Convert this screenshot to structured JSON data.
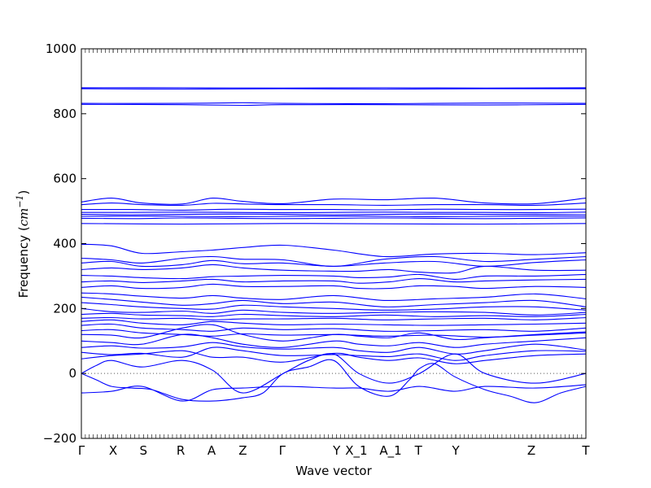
{
  "chart_data": {
    "type": "line",
    "title": "",
    "xlabel": "Wave vector",
    "ylabel": "Frequency",
    "ylabel_unit_base": "cm",
    "ylabel_unit_exp": "−1",
    "ylim": [
      -200,
      1000
    ],
    "yticks": [
      -200,
      0,
      200,
      400,
      600,
      800,
      1000
    ],
    "grid": false,
    "zero_line": {
      "y": 0,
      "style": "dotted",
      "color": "#555555"
    },
    "line_color": "#0000ff",
    "xlim": [
      0,
      100
    ],
    "high_symmetry_points": [
      {
        "label": "Γ",
        "x": 0
      },
      {
        "label": "X",
        "x": 6.3
      },
      {
        "label": "S",
        "x": 12.3
      },
      {
        "label": "R",
        "x": 19.7
      },
      {
        "label": "A",
        "x": 25.8
      },
      {
        "label": "Z",
        "x": 32.0
      },
      {
        "label": "Γ",
        "x": 39.8
      },
      {
        "label": "Y",
        "x": 50.6
      },
      {
        "label": "X_1",
        "x": 54.5
      },
      {
        "label": "A_1",
        "x": 61.3
      },
      {
        "label": "T",
        "x": 66.8
      },
      {
        "label": "Y",
        "x": 74.2
      },
      {
        "label": "Z",
        "x": 89.2
      },
      {
        "label": "T",
        "x": 100
      }
    ],
    "series": [
      {
        "x": [
          0,
          20,
          40,
          60,
          80,
          100
        ],
        "y": [
          880,
          880,
          879,
          880,
          879,
          880
        ]
      },
      {
        "x": [
          0,
          20,
          40,
          60,
          80,
          100
        ],
        "y": [
          877,
          876,
          877,
          876,
          877,
          877
        ]
      },
      {
        "x": [
          0,
          20,
          32,
          40,
          60,
          80,
          100
        ],
        "y": [
          832,
          832,
          834,
          832,
          831,
          833,
          832
        ]
      },
      {
        "x": [
          0,
          20,
          32,
          40,
          60,
          80,
          100
        ],
        "y": [
          829,
          828,
          826,
          828,
          828,
          827,
          829
        ]
      },
      {
        "x": [
          0,
          6,
          12,
          20,
          26,
          32,
          40,
          50,
          60,
          70,
          80,
          90,
          100
        ],
        "y": [
          528,
          540,
          525,
          522,
          540,
          530,
          523,
          537,
          535,
          540,
          525,
          523,
          540
        ]
      },
      {
        "x": [
          0,
          6,
          12,
          20,
          26,
          32,
          40,
          50,
          60,
          70,
          80,
          90,
          100
        ],
        "y": [
          520,
          525,
          520,
          518,
          524,
          522,
          520,
          520,
          518,
          520,
          520,
          518,
          525
        ]
      },
      {
        "x": [
          0,
          10,
          20,
          30,
          40,
          50,
          60,
          70,
          80,
          90,
          100
        ],
        "y": [
          505,
          505,
          503,
          506,
          505,
          505,
          504,
          506,
          505,
          505,
          506
        ]
      },
      {
        "x": [
          0,
          10,
          20,
          30,
          40,
          50,
          60,
          70,
          80,
          90,
          100
        ],
        "y": [
          496,
          496,
          497,
          496,
          495,
          496,
          497,
          496,
          496,
          495,
          497
        ]
      },
      {
        "x": [
          0,
          10,
          20,
          30,
          40,
          50,
          60,
          70,
          80,
          90,
          100
        ],
        "y": [
          490,
          489,
          490,
          491,
          490,
          489,
          490,
          491,
          490,
          490,
          489
        ]
      },
      {
        "x": [
          0,
          10,
          20,
          30,
          40,
          50,
          60,
          70,
          80,
          90,
          100
        ],
        "y": [
          484,
          485,
          484,
          483,
          484,
          485,
          484,
          483,
          484,
          485,
          484
        ]
      },
      {
        "x": [
          0,
          10,
          20,
          30,
          40,
          50,
          60,
          70,
          80,
          90,
          100
        ],
        "y": [
          478,
          477,
          479,
          478,
          477,
          478,
          479,
          478,
          477,
          478,
          479
        ]
      },
      {
        "x": [
          0,
          20,
          40,
          60,
          80,
          100
        ],
        "y": [
          462,
          460,
          462,
          461,
          460,
          462
        ]
      },
      {
        "x": [
          0,
          6,
          12,
          20,
          26,
          32,
          40,
          50,
          60,
          70,
          80,
          90,
          100
        ],
        "y": [
          398,
          393,
          370,
          375,
          380,
          388,
          395,
          380,
          360,
          368,
          370,
          366,
          372
        ]
      },
      {
        "x": [
          0,
          6,
          12,
          20,
          26,
          32,
          40,
          50,
          60,
          70,
          80,
          90,
          100
        ],
        "y": [
          355,
          350,
          340,
          355,
          360,
          352,
          350,
          330,
          352,
          360,
          345,
          352,
          360
        ]
      },
      {
        "x": [
          0,
          6,
          12,
          20,
          26,
          32,
          40,
          50,
          60,
          70,
          80,
          90,
          100
        ],
        "y": [
          340,
          345,
          330,
          335,
          348,
          338,
          340,
          330,
          340,
          345,
          330,
          342,
          350
        ]
      },
      {
        "x": [
          0,
          6,
          12,
          20,
          26,
          32,
          40,
          50,
          55,
          61,
          67,
          74,
          80,
          90,
          100
        ],
        "y": [
          320,
          325,
          320,
          325,
          335,
          325,
          318,
          315,
          315,
          320,
          312,
          310,
          330,
          318,
          318
        ]
      },
      {
        "x": [
          0,
          6,
          12,
          20,
          26,
          32,
          40,
          50,
          55,
          61,
          67,
          74,
          80,
          90,
          100
        ],
        "y": [
          302,
          300,
          295,
          292,
          298,
          300,
          302,
          300,
          295,
          297,
          305,
          290,
          300,
          300,
          305
        ]
      },
      {
        "x": [
          0,
          6,
          12,
          20,
          26,
          32,
          40,
          50,
          55,
          61,
          67,
          74,
          80,
          90,
          100
        ],
        "y": [
          282,
          285,
          280,
          285,
          290,
          282,
          285,
          285,
          278,
          282,
          292,
          282,
          285,
          288,
          290
        ]
      },
      {
        "x": [
          0,
          6,
          12,
          20,
          26,
          32,
          40,
          50,
          55,
          61,
          67,
          74,
          80,
          90,
          100
        ],
        "y": [
          265,
          270,
          262,
          265,
          275,
          268,
          268,
          270,
          262,
          262,
          270,
          268,
          262,
          268,
          265
        ]
      },
      {
        "x": [
          0,
          6,
          12,
          20,
          26,
          32,
          40,
          50,
          60,
          70,
          80,
          90,
          100
        ],
        "y": [
          248,
          245,
          238,
          232,
          240,
          232,
          228,
          240,
          225,
          230,
          235,
          245,
          230
        ]
      },
      {
        "x": [
          0,
          6,
          12,
          20,
          26,
          32,
          40,
          50,
          60,
          70,
          80,
          90,
          100
        ],
        "y": [
          235,
          228,
          220,
          210,
          215,
          225,
          215,
          220,
          205,
          212,
          218,
          225,
          205
        ]
      },
      {
        "x": [
          0,
          6,
          12,
          20,
          26,
          32,
          40,
          50,
          60,
          70,
          80,
          90,
          100
        ],
        "y": [
          218,
          212,
          205,
          200,
          198,
          210,
          205,
          200,
          195,
          198,
          205,
          205,
          195
        ]
      },
      {
        "x": [
          0,
          6,
          12,
          20,
          26,
          32,
          40,
          50,
          60,
          70,
          80,
          90,
          100
        ],
        "y": [
          200,
          190,
          188,
          192,
          185,
          195,
          188,
          185,
          188,
          190,
          188,
          180,
          188
        ]
      },
      {
        "x": [
          0,
          6,
          12,
          20,
          26,
          32,
          40,
          50,
          60,
          70,
          80,
          90,
          100
        ],
        "y": [
          182,
          185,
          180,
          178,
          175,
          182,
          178,
          175,
          180,
          175,
          178,
          175,
          182
        ]
      },
      {
        "x": [
          0,
          6,
          12,
          20,
          26,
          32,
          40,
          50,
          60,
          70,
          80,
          90,
          100
        ],
        "y": [
          170,
          172,
          168,
          170,
          165,
          168,
          168,
          170,
          165,
          168,
          170,
          165,
          172
        ]
      },
      {
        "x": [
          0,
          6,
          12,
          20,
          26,
          32,
          40,
          50,
          60,
          70,
          80,
          90,
          100
        ],
        "y": [
          160,
          165,
          155,
          150,
          160,
          155,
          150,
          152,
          150,
          148,
          150,
          152,
          155
        ]
      },
      {
        "x": [
          0,
          6,
          12,
          20,
          26,
          32,
          40,
          50,
          60,
          70,
          80,
          90,
          100
        ],
        "y": [
          148,
          152,
          140,
          135,
          130,
          140,
          135,
          138,
          130,
          132,
          135,
          130,
          140
        ]
      },
      {
        "x": [
          0,
          6,
          12,
          20,
          26,
          32,
          40,
          50,
          60,
          70,
          80,
          90,
          100
        ],
        "y": [
          132,
          135,
          125,
          120,
          115,
          122,
          118,
          120,
          115,
          118,
          112,
          118,
          125
        ]
      },
      {
        "x": [
          0,
          6,
          12,
          20,
          26,
          32,
          40,
          50,
          55,
          61,
          67,
          74,
          80,
          90,
          100
        ],
        "y": [
          120,
          118,
          110,
          140,
          150,
          120,
          100,
          120,
          115,
          110,
          125,
          105,
          110,
          120,
          128
        ]
      },
      {
        "x": [
          0,
          6,
          12,
          20,
          26,
          32,
          40,
          50,
          55,
          61,
          67,
          74,
          80,
          90,
          100
        ],
        "y": [
          100,
          95,
          90,
          120,
          110,
          90,
          80,
          100,
          90,
          85,
          95,
          80,
          90,
          100,
          110
        ]
      },
      {
        "x": [
          0,
          6,
          12,
          20,
          26,
          32,
          40,
          50,
          55,
          61,
          67,
          74,
          80,
          90,
          100
        ],
        "y": [
          80,
          85,
          78,
          82,
          95,
          82,
          75,
          80,
          70,
          65,
          80,
          60,
          70,
          90,
          72
        ]
      },
      {
        "x": [
          0,
          6,
          12,
          20,
          26,
          32,
          40,
          50,
          55,
          61,
          67,
          74,
          80,
          90,
          100
        ],
        "y": [
          65,
          58,
          62,
          50,
          80,
          70,
          55,
          58,
          55,
          52,
          60,
          40,
          55,
          70,
          68
        ]
      },
      {
        "x": [
          0,
          6,
          12,
          20,
          26,
          32,
          40,
          50,
          55,
          61,
          67,
          74,
          80,
          90,
          100
        ],
        "y": [
          45,
          55,
          60,
          70,
          50,
          50,
          35,
          62,
          50,
          40,
          48,
          30,
          40,
          55,
          60
        ]
      },
      {
        "x": [
          0,
          3,
          6,
          12,
          20,
          26,
          32,
          40,
          45,
          50,
          55,
          61,
          67,
          74,
          80,
          90,
          100
        ],
        "y": [
          0,
          25,
          40,
          20,
          40,
          10,
          -60,
          0,
          40,
          60,
          0,
          -30,
          0,
          60,
          0,
          -30,
          0
        ]
      },
      {
        "x": [
          0,
          3,
          6,
          10,
          14,
          20,
          26,
          32,
          36,
          40,
          45,
          50,
          55,
          61,
          65,
          67,
          70,
          74,
          80,
          85,
          90,
          95,
          100
        ],
        "y": [
          0,
          -20,
          -40,
          -45,
          -50,
          -80,
          -85,
          -75,
          -60,
          0,
          20,
          40,
          -40,
          -70,
          -20,
          15,
          30,
          -10,
          -50,
          -70,
          -90,
          -60,
          -40
        ]
      },
      {
        "x": [
          0,
          6,
          12,
          20,
          26,
          32,
          40,
          50,
          55,
          61,
          67,
          74,
          80,
          90,
          100
        ],
        "y": [
          -60,
          -55,
          -40,
          -85,
          -50,
          -45,
          -40,
          -45,
          -45,
          -55,
          -40,
          -55,
          -40,
          -45,
          -35
        ]
      }
    ]
  }
}
